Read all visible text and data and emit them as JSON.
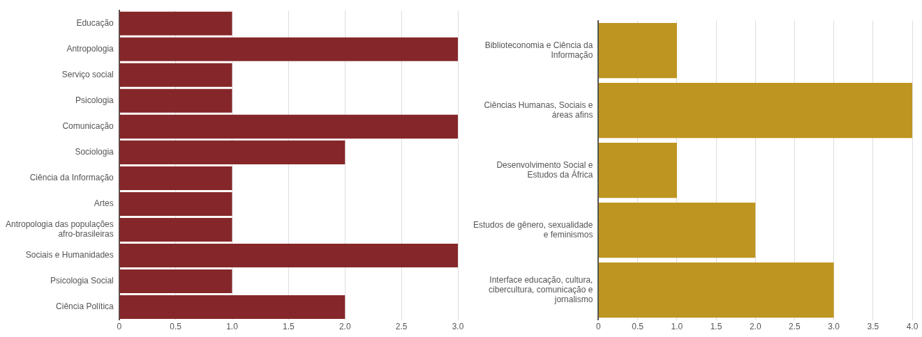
{
  "chart_data": [
    {
      "type": "bar",
      "orientation": "horizontal",
      "categories": [
        "Educação",
        "Antropologia",
        "Serviço social",
        "Psicologia",
        "Comunicação",
        "Sociologia",
        "Ciência da Informação",
        "Artes",
        "Antropologia das populações afro-brasileiras",
        "Sociais e Humanidades",
        "Psicologia Social",
        "Ciência Política"
      ],
      "values": [
        1,
        3,
        1,
        1,
        3,
        2,
        1,
        1,
        1,
        3,
        1,
        2
      ],
      "color": "#85272a",
      "xlim": [
        0,
        3
      ],
      "xticks": [
        0,
        {
          "value": 0.5,
          "label": "0.5"
        },
        {
          "value": 1,
          "label": "1.0"
        },
        {
          "value": 1.5,
          "label": "1.5"
        },
        {
          "value": 2,
          "label": "2.0"
        },
        {
          "value": 2.5,
          "label": "2.5"
        },
        {
          "value": 3,
          "label": "3.0"
        }
      ],
      "grid": "x"
    },
    {
      "type": "bar",
      "orientation": "horizontal",
      "categories": [
        "Biblioteconomia e Ciência da Informação",
        "Ciências Humanas, Sociais e áreas afins",
        "Desenvolvimento Social e Estudos da África",
        "Estudos de gênero, sexualidade e feminismos",
        "Interface educação, cultura, cibercultura, comunicação e jornalismo"
      ],
      "values": [
        1,
        4,
        1,
        2,
        3
      ],
      "color": "#be9520",
      "xlim": [
        0,
        4
      ],
      "xticks": [
        0,
        {
          "value": 0.5,
          "label": "0.5"
        },
        {
          "value": 1,
          "label": "1.0"
        },
        {
          "value": 1.5,
          "label": "1.5"
        },
        {
          "value": 2,
          "label": "2.0"
        },
        {
          "value": 2.5,
          "label": "2.5"
        },
        {
          "value": 3,
          "label": "3.0"
        },
        {
          "value": 3.5,
          "label": "3.5"
        },
        {
          "value": 4,
          "label": "4.0"
        }
      ],
      "grid": "x"
    }
  ]
}
